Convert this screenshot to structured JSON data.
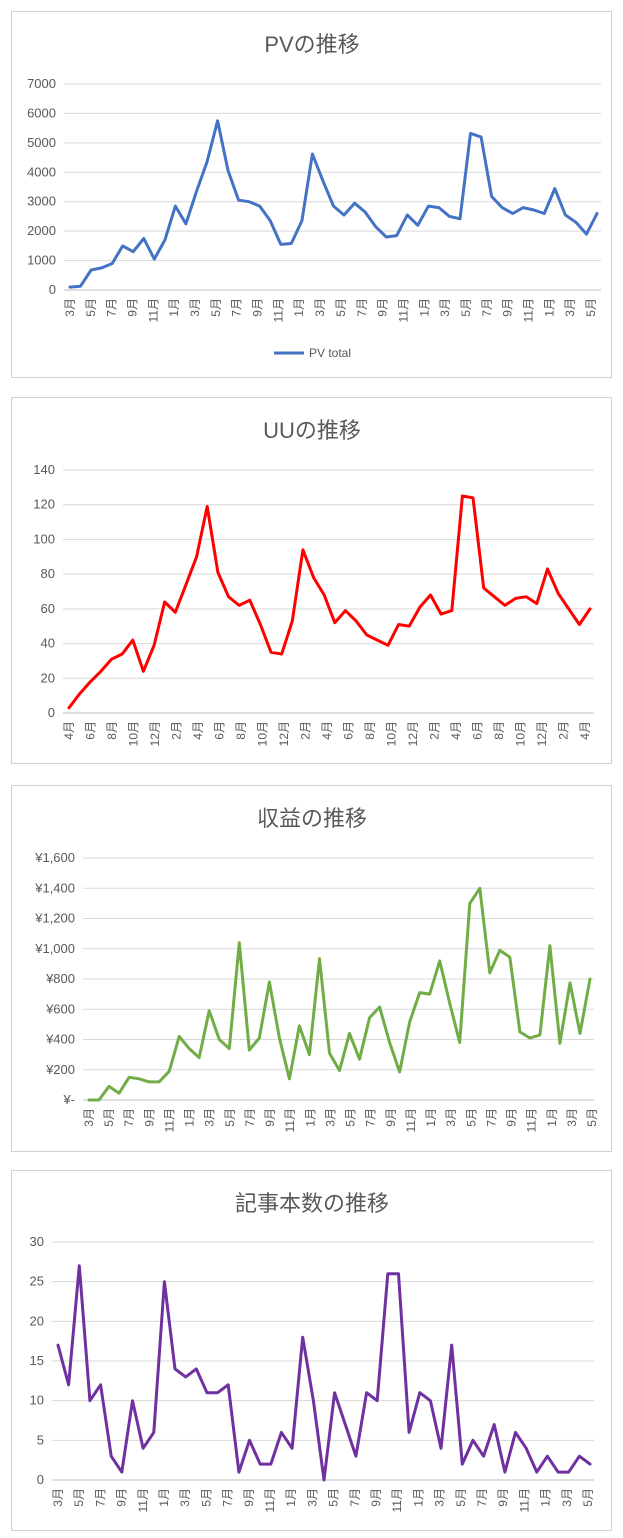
{
  "chart_data": [
    {
      "type": "line",
      "title": "PVの推移",
      "legend": "bottom",
      "grid": true,
      "color": "#4472C4",
      "ylim": [
        0,
        7000
      ],
      "yticks": [
        "0",
        "1000",
        "2000",
        "3000",
        "4000",
        "5000",
        "6000",
        "7000"
      ],
      "xtick_labels": [
        "3月",
        "5月",
        "7月",
        "9月",
        "11月",
        "1月",
        "3月",
        "5月",
        "7月",
        "9月",
        "11月",
        "1月",
        "3月",
        "5月",
        "7月",
        "9月",
        "11月",
        "1月",
        "3月",
        "5月",
        "7月",
        "9月",
        "11月",
        "1月",
        "3月",
        "5月"
      ],
      "series": [
        {
          "name": "PV total",
          "values": [
            100,
            130,
            680,
            750,
            900,
            1500,
            1300,
            1750,
            1050,
            1700,
            2850,
            2250,
            3350,
            4350,
            5750,
            4050,
            3050,
            3000,
            2850,
            2350,
            1550,
            1580,
            2350,
            4620,
            3700,
            2850,
            2550,
            2950,
            2650,
            2150,
            1800,
            1850,
            2550,
            2200,
            2850,
            2800,
            2500,
            2420,
            5320,
            5200,
            3180,
            2800,
            2600,
            2800,
            2720,
            2600,
            3450,
            2550,
            2300,
            1900,
            2600
          ]
        }
      ]
    },
    {
      "type": "line",
      "title": "UUの推移",
      "legend": "none",
      "grid": true,
      "color": "#FF0000",
      "ylim": [
        0,
        140
      ],
      "yticks": [
        "0",
        "20",
        "40",
        "60",
        "80",
        "100",
        "120",
        "140"
      ],
      "xtick_labels": [
        "4月",
        "6月",
        "8月",
        "10月",
        "12月",
        "2月",
        "4月",
        "6月",
        "8月",
        "10月",
        "12月",
        "2月",
        "4月",
        "6月",
        "8月",
        "10月",
        "12月",
        "2月",
        "4月",
        "6月",
        "8月",
        "10月",
        "12月",
        "2月",
        "4月"
      ],
      "series": [
        {
          "name": "",
          "values": [
            3,
            11,
            18,
            24,
            31,
            34,
            42,
            24,
            39,
            64,
            58,
            74,
            90,
            119,
            81,
            67,
            62,
            65,
            51,
            35,
            34,
            53,
            94,
            78,
            68,
            52,
            59,
            53,
            45,
            42,
            39,
            51,
            50,
            61,
            68,
            57,
            59,
            125,
            124,
            72,
            67,
            62,
            66,
            67,
            63,
            83,
            69,
            60,
            51,
            60
          ]
        }
      ]
    },
    {
      "type": "line",
      "title": "収益の推移",
      "legend": "none",
      "grid": true,
      "color": "#70AD47",
      "ylim": [
        0,
        1600
      ],
      "yticks": [
        "¥-",
        "¥200",
        "¥400",
        "¥600",
        "¥800",
        "¥1,000",
        "¥1,200",
        "¥1,400",
        "¥1,600"
      ],
      "xtick_labels": [
        "3月",
        "5月",
        "7月",
        "9月",
        "11月",
        "1月",
        "3月",
        "5月",
        "7月",
        "9月",
        "11月",
        "1月",
        "3月",
        "5月",
        "7月",
        "9月",
        "11月",
        "1月",
        "3月",
        "5月",
        "7月",
        "9月",
        "11月",
        "1月",
        "3月",
        "5月"
      ],
      "series": [
        {
          "name": "",
          "values": [
            0,
            0,
            90,
            45,
            150,
            140,
            120,
            120,
            190,
            420,
            340,
            280,
            590,
            400,
            340,
            1040,
            330,
            410,
            780,
            410,
            140,
            490,
            300,
            935,
            310,
            195,
            440,
            270,
            545,
            615,
            380,
            185,
            515,
            710,
            700,
            920,
            640,
            380,
            1300,
            1400,
            840,
            990,
            945,
            450,
            410,
            430,
            1020,
            375,
            775,
            440,
            800
          ]
        }
      ]
    },
    {
      "type": "line",
      "title": "記事本数の推移",
      "legend": "none",
      "grid": true,
      "color": "#7030A0",
      "ylim": [
        0,
        30
      ],
      "yticks": [
        "0",
        "5",
        "10",
        "15",
        "20",
        "25",
        "30"
      ],
      "xtick_labels": [
        "3月",
        "5月",
        "7月",
        "9月",
        "11月",
        "1月",
        "3月",
        "5月",
        "7月",
        "9月",
        "11月",
        "1月",
        "3月",
        "5月",
        "7月",
        "9月",
        "11月",
        "1月",
        "3月",
        "5月",
        "7月",
        "9月",
        "11月",
        "1月",
        "3月",
        "5月"
      ],
      "series": [
        {
          "name": "",
          "values": [
            17,
            12,
            27,
            10,
            12,
            3,
            1,
            10,
            4,
            6,
            25,
            14,
            13,
            14,
            11,
            11,
            12,
            1,
            5,
            2,
            2,
            6,
            4,
            18,
            10,
            0,
            11,
            7,
            3,
            11,
            10,
            26,
            26,
            6,
            11,
            10,
            4,
            17,
            2,
            5,
            3,
            7,
            1,
            6,
            4,
            1,
            3,
            1,
            1,
            3,
            2
          ]
        }
      ]
    }
  ]
}
